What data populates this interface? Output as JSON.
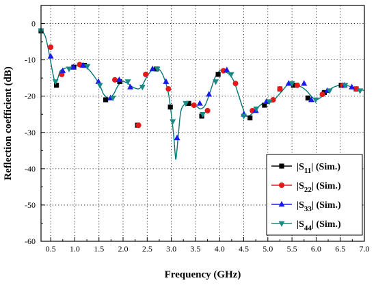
{
  "chart_data": {
    "type": "line",
    "xlabel": "Frequency (GHz)",
    "ylabel": "Reflection coefficient (dB)",
    "xlim": [
      0.3,
      7.0
    ],
    "ylim": [
      -60,
      5
    ],
    "x_ticks": [
      "0.5",
      "1.0",
      "1.5",
      "2.0",
      "2.5",
      "3.0",
      "3.5",
      "4.0",
      "4.5",
      "5.0",
      "5.5",
      "6.0",
      "6.5",
      "7.0"
    ],
    "y_ticks": [
      "0",
      "-10",
      "-20",
      "-30",
      "-40",
      "-50",
      "-60"
    ],
    "grid": "dotted",
    "legend_position": "bottom-right",
    "curve": {
      "color": "#007777",
      "x": [
        0.3,
        0.35,
        0.4,
        0.45,
        0.5,
        0.55,
        0.6,
        0.65,
        0.7,
        0.8,
        0.9,
        1.0,
        1.1,
        1.2,
        1.3,
        1.4,
        1.5,
        1.55,
        1.6,
        1.7,
        1.8,
        1.9,
        2.0,
        2.1,
        2.2,
        2.3,
        2.35,
        2.4,
        2.5,
        2.6,
        2.7,
        2.8,
        2.9,
        2.95,
        3.0,
        3.05,
        3.08,
        3.1,
        3.15,
        3.2,
        3.3,
        3.4,
        3.5,
        3.6,
        3.7,
        3.8,
        3.9,
        4.0,
        4.05,
        4.1,
        4.2,
        4.3,
        4.4,
        4.5,
        4.55,
        4.6,
        4.7,
        4.8,
        4.9,
        5.0,
        5.1,
        5.2,
        5.3,
        5.4,
        5.5,
        5.6,
        5.7,
        5.8,
        5.9,
        6.0,
        6.1,
        6.2,
        6.3,
        6.4,
        6.5,
        6.6,
        6.7,
        6.8,
        6.9,
        7.0
      ],
      "y": [
        -2,
        -2.5,
        -4,
        -7,
        -10.5,
        -14,
        -16.5,
        -15,
        -13,
        -12.3,
        -12,
        -11.7,
        -11.5,
        -11.8,
        -12.8,
        -14.5,
        -16.5,
        -18,
        -19.5,
        -20.5,
        -19.5,
        -17,
        -16,
        -16.5,
        -17.5,
        -18,
        -17.8,
        -17,
        -14.5,
        -12.8,
        -12.3,
        -13.5,
        -17,
        -20,
        -25,
        -31,
        -36,
        -37,
        -30,
        -24,
        -22,
        -22.2,
        -22.5,
        -23.5,
        -22.5,
        -19,
        -15,
        -13,
        -12.8,
        -13.2,
        -14,
        -16,
        -20,
        -24,
        -25.3,
        -25.5,
        -24.5,
        -23,
        -22,
        -21.7,
        -21.5,
        -20,
        -18.5,
        -17,
        -16.5,
        -17,
        -17.5,
        -18.5,
        -20,
        -21,
        -20.3,
        -19,
        -18,
        -17.3,
        -17,
        -17,
        -17.3,
        -17.8,
        -18,
        -18.5
      ]
    },
    "series": [
      {
        "name": "|S11| (Sim.)",
        "label_base": "|S",
        "label_sub": "11",
        "label_rest": "| (Sim.)",
        "color": "#000000",
        "marker": "square",
        "x": [
          0.3,
          0.62,
          0.98,
          1.2,
          1.64,
          1.93,
          2.3,
          2.69,
          2.98,
          3.36,
          3.63,
          3.97,
          4.63,
          4.93,
          5.25,
          5.53,
          5.83,
          6.17,
          6.52,
          6.83
        ],
        "y": [
          -2,
          -17,
          -12,
          -11.5,
          -21,
          -16,
          -28,
          -12.5,
          -23,
          -22,
          -25.5,
          -14,
          -26,
          -22.5,
          -18,
          -17,
          -20.5,
          -19,
          -17,
          -18
        ]
      },
      {
        "name": "|S22| (Sim.)",
        "label_base": "|S",
        "label_sub": "22",
        "label_rest": "| (Sim.)",
        "color": "#e41a1a",
        "marker": "circle",
        "x": [
          0.5,
          0.73,
          1.1,
          1.83,
          2.32,
          2.47,
          2.94,
          3.47,
          3.75,
          4.08,
          4.33,
          4.68,
          5.11,
          5.25,
          5.61,
          6.13,
          6.55,
          6.83
        ],
        "y": [
          -6.5,
          -14,
          -11.3,
          -15.5,
          -28,
          -14,
          -18,
          -22.5,
          -24,
          -13,
          -16.5,
          -24,
          -21,
          -18,
          -17,
          -19.5,
          -17,
          -18
        ]
      },
      {
        "name": "|S33| (Sim.)",
        "label_base": "|S",
        "label_sub": "33",
        "label_rest": "| (Sim.)",
        "color": "#1a1aee",
        "marker": "triangle-up",
        "x": [
          0.5,
          0.75,
          0.97,
          1.17,
          1.49,
          1.74,
          1.92,
          2.15,
          2.61,
          2.89,
          3.12,
          3.59,
          3.78,
          4.15,
          4.5,
          4.75,
          4.97,
          5.43,
          5.75,
          5.9,
          6.23,
          6.59,
          6.74
        ],
        "y": [
          -9,
          -13,
          -12,
          -11.5,
          -16,
          -20.5,
          -15.5,
          -17.5,
          -12.5,
          -16,
          -31.5,
          -22,
          -19.5,
          -12.8,
          -25,
          -24,
          -21.5,
          -16.5,
          -16.5,
          -21,
          -18.5,
          -17,
          -17.5
        ]
      },
      {
        "name": "|S44| (Sim.)",
        "label_base": "|S",
        "label_sub": "44",
        "label_rest": "| (Sim.)",
        "color": "#1a8a86",
        "marker": "triangle-down",
        "x": [
          0.3,
          0.6,
          0.88,
          1.26,
          1.52,
          1.79,
          2.1,
          2.4,
          2.71,
          3.03,
          3.3,
          3.65,
          3.92,
          4.24,
          4.5,
          4.76,
          5.03,
          5.5,
          5.99,
          6.28,
          6.6,
          6.91
        ],
        "y": [
          -2,
          -16,
          -12.5,
          -11.8,
          -17,
          -20.5,
          -16,
          -17.5,
          -12.5,
          -27,
          -22,
          -25,
          -16,
          -14,
          -25.5,
          -23.5,
          -21.5,
          -16.5,
          -21,
          -18.5,
          -17,
          -18.5
        ]
      }
    ]
  }
}
